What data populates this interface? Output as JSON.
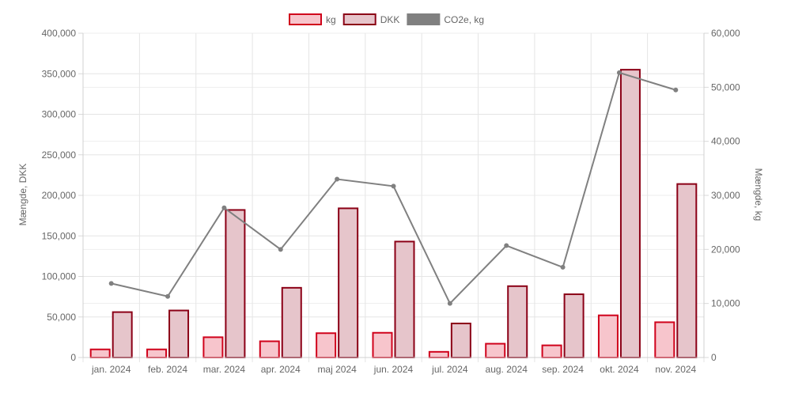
{
  "chart_data": {
    "type": "bar",
    "categories": [
      "jan. 2024",
      "feb. 2024",
      "mar. 2024",
      "apr. 2024",
      "maj 2024",
      "jun. 2024",
      "jul. 2024",
      "aug. 2024",
      "sep. 2024",
      "okt. 2024",
      "nov. 2024"
    ],
    "series": [
      {
        "name": "kg",
        "type": "bar",
        "axis": "left",
        "color": "#d0021b",
        "fill": "#f7c5cc",
        "values": [
          10000,
          10000,
          25000,
          20000,
          30000,
          30500,
          7000,
          17000,
          15000,
          52000,
          43500
        ]
      },
      {
        "name": "DKK",
        "type": "bar",
        "axis": "left",
        "color": "#8b0016",
        "fill": "#e6c5cb",
        "values": [
          56000,
          58000,
          182000,
          86000,
          184000,
          143000,
          42000,
          88000,
          78000,
          355000,
          214000
        ]
      },
      {
        "name": "CO2e, kg",
        "type": "line",
        "axis": "right",
        "color": "#808080",
        "values": [
          13700,
          11300,
          27700,
          20000,
          33000,
          31700,
          10000,
          20700,
          16700,
          52700,
          49500
        ]
      }
    ],
    "ylabel": "Mængde, DKK",
    "y2label": "Mængde, kg",
    "ylim": [
      0,
      400000
    ],
    "y2lim": [
      0,
      60000
    ],
    "yticks": [
      "0",
      "50,000",
      "100,000",
      "150,000",
      "200,000",
      "250,000",
      "300,000",
      "350,000",
      "400,000"
    ],
    "y2ticks": [
      "0",
      "10,000",
      "20,000",
      "30,000",
      "40,000",
      "50,000",
      "60,000"
    ],
    "grid": true,
    "legend_position": "top-center"
  }
}
